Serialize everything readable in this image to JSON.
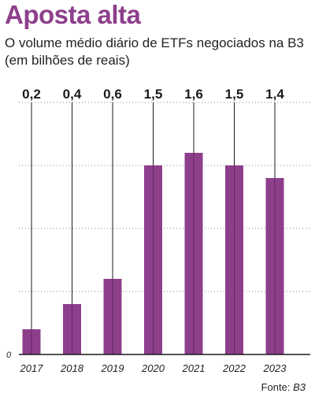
{
  "title": "Aposta alta",
  "subtitle": "O volume médio diário de ETFs negociados na B3 (em bilhões de reais)",
  "source": {
    "label": "Fonte:",
    "value": "B3"
  },
  "chart_data": {
    "type": "bar",
    "categories": [
      "2017",
      "2018",
      "2019",
      "2020",
      "2021",
      "2022",
      "2023"
    ],
    "values": [
      0.2,
      0.4,
      0.6,
      1.5,
      1.6,
      1.5,
      1.4
    ],
    "value_labels": [
      "0,2",
      "0,4",
      "0,6",
      "1,5",
      "1,6",
      "1,5",
      "1,4"
    ],
    "ylim": [
      0,
      2.0
    ],
    "y_tick_labels": [
      "0"
    ],
    "grid": "dotted horizontal",
    "bar_color": "#8e3f8c"
  }
}
